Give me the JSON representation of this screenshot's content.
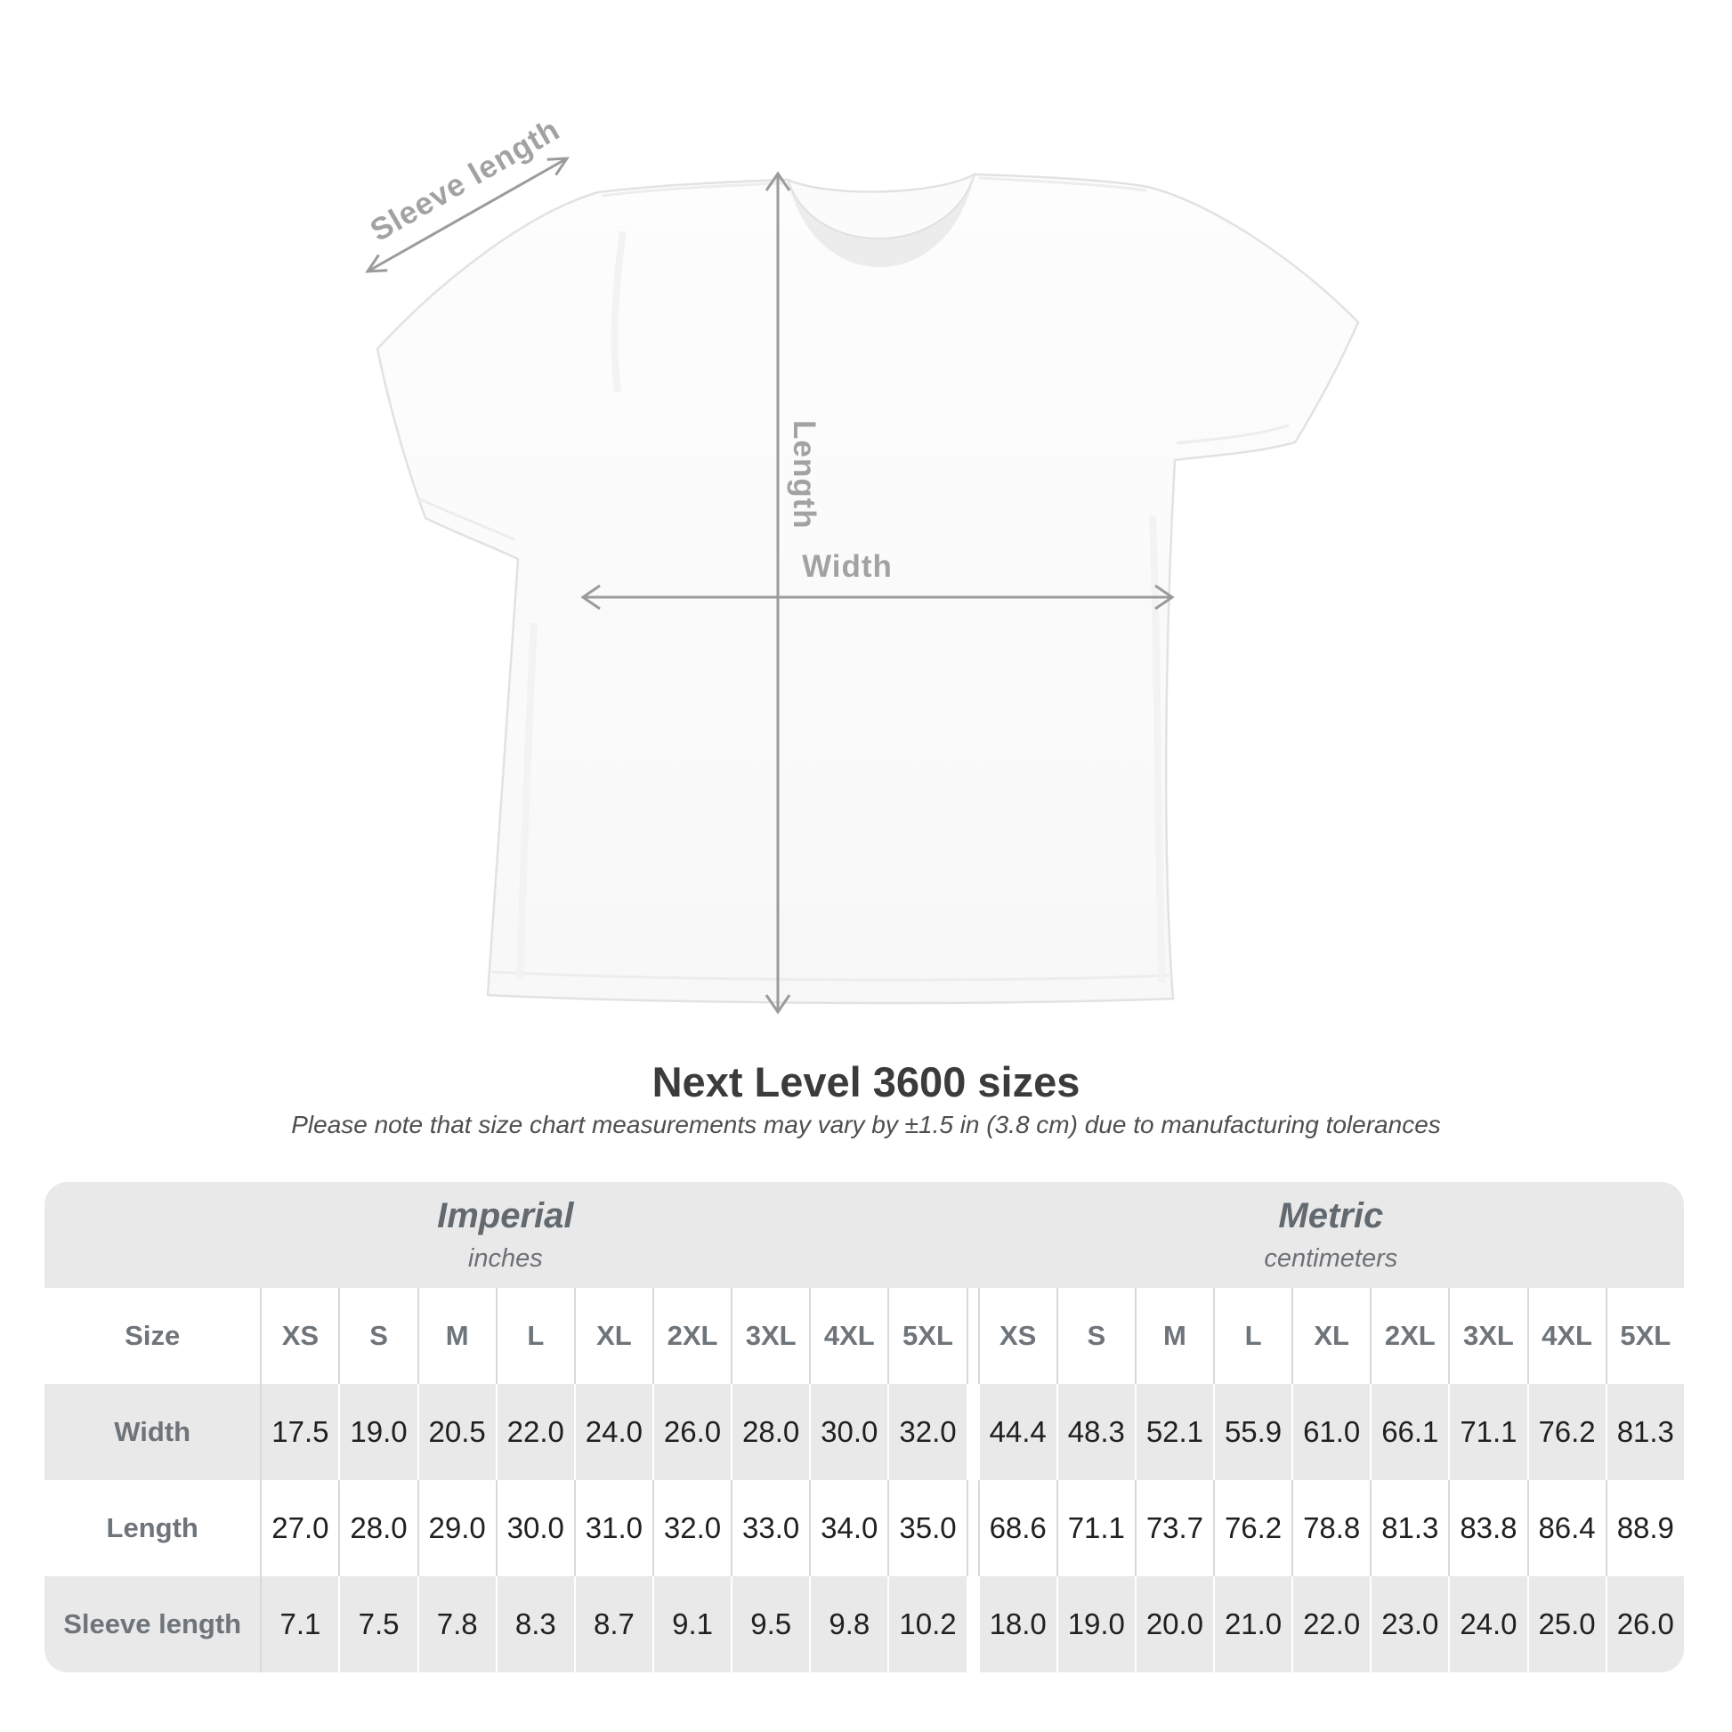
{
  "title": "Next Level 3600 sizes",
  "subtitle": "Please note that size chart measurements may vary by ±1.5 in (3.8 cm) due to manufacturing tolerances",
  "diagram": {
    "sleeve_label": "Sleeve length",
    "length_label": "Length",
    "width_label": "Width",
    "arrow_color": "#9b9b9b",
    "label_color": "#a2a2a2",
    "shirt_outline": "#e2e2e2"
  },
  "table": {
    "band_color": "#e9e9e9",
    "divider_color": "#d9d9d9",
    "header_text_color": "#6d747a",
    "value_text_color": "#202020",
    "groups": [
      {
        "label": "Imperial",
        "sublabel": "inches"
      },
      {
        "label": "Metric",
        "sublabel": "centimeters"
      }
    ],
    "size_header": "Size",
    "sizes": [
      "XS",
      "S",
      "M",
      "L",
      "XL",
      "2XL",
      "3XL",
      "4XL",
      "5XL"
    ],
    "rows": [
      {
        "label": "Width",
        "imperial": [
          "17.5",
          "19.0",
          "20.5",
          "22.0",
          "24.0",
          "26.0",
          "28.0",
          "30.0",
          "32.0"
        ],
        "metric": [
          "44.4",
          "48.3",
          "52.1",
          "55.9",
          "61.0",
          "66.1",
          "71.1",
          "76.2",
          "81.3"
        ]
      },
      {
        "label": "Length",
        "imperial": [
          "27.0",
          "28.0",
          "29.0",
          "30.0",
          "31.0",
          "32.0",
          "33.0",
          "34.0",
          "35.0"
        ],
        "metric": [
          "68.6",
          "71.1",
          "73.7",
          "76.2",
          "78.8",
          "81.3",
          "83.8",
          "86.4",
          "88.9"
        ]
      },
      {
        "label": "Sleeve length",
        "imperial": [
          "7.1",
          "7.5",
          "7.8",
          "8.3",
          "8.7",
          "9.1",
          "9.5",
          "9.8",
          "10.2"
        ],
        "metric": [
          "18.0",
          "19.0",
          "20.0",
          "21.0",
          "22.0",
          "23.0",
          "24.0",
          "25.0",
          "26.0"
        ]
      }
    ]
  }
}
